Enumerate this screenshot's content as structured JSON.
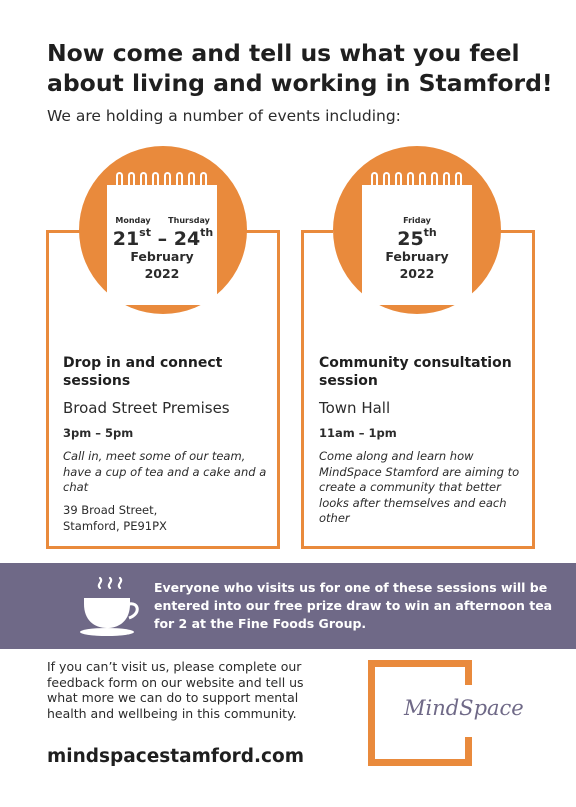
{
  "headline": "Now come and tell us what you feel about living and working in Stamford!",
  "intro": "We are holding a number of events including:",
  "events": [
    {
      "day_start": "Monday",
      "day_end": "Thursday",
      "date_start": "21",
      "date_start_suffix": "st",
      "date_sep": " – ",
      "date_end": "24",
      "date_end_suffix": "th",
      "month": "February",
      "year": "2022",
      "title": "Drop in and connect sessions",
      "venue": "Broad Street Premises",
      "time": "3pm – 5pm",
      "description": "Call in, meet some of our team, have a cup of tea and a cake and a chat",
      "address_line1": "39 Broad Street,",
      "address_line2": "Stamford, PE91PX"
    },
    {
      "day": "Friday",
      "date": "25",
      "date_suffix": "th",
      "month": "February",
      "year": "2022",
      "title": "Community consultation session",
      "venue": "Town Hall",
      "time": "11am – 1pm",
      "description": "Come along and learn how MindSpace Stamford are aiming to create a community that better looks after themselves and each other"
    }
  ],
  "banner": {
    "text": "Everyone who visits us for one of these sessions will be entered into our free prize draw to win an afternoon tea for 2 at the Fine Foods Group.",
    "icon": "teacup-icon"
  },
  "footer": {
    "text": "If you can’t visit us, please complete our feedback form on our website and tell us what more we can do to support mental health and wellbeing in this community.",
    "url": "mindspacestamford.com"
  },
  "logo": {
    "text": "MindSpace"
  },
  "colors": {
    "orange": "#e98a3c",
    "purple": "#6f6987",
    "text": "#2b2b2b"
  }
}
